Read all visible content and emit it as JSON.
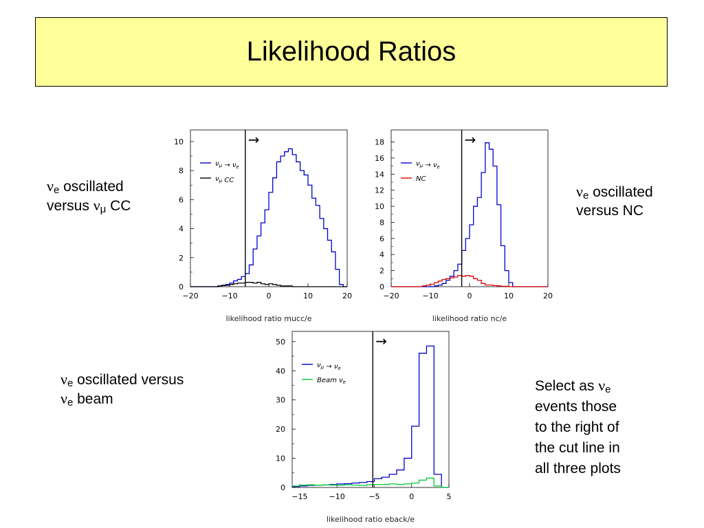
{
  "slide": {
    "title": "Likelihood Ratios"
  },
  "captions": {
    "cap1": {
      "nu1": "ν",
      "sub1": "e",
      "t1": " oscillated",
      "t2": "versus ",
      "nu2": "ν",
      "sub2": "μ",
      "t3": " CC"
    },
    "cap2": {
      "nu1": "ν",
      "sub1": "e",
      "t1": " oscillated",
      "t2": "versus NC"
    },
    "cap3": {
      "nu1": "ν",
      "sub1": "e",
      "t1": " oscillated versus",
      "nu2": "ν",
      "sub2": "e",
      "t2": " beam"
    },
    "cap4": {
      "l1a": "Select as ",
      "nu": "ν",
      "sub": "e",
      "l2": "events those",
      "l3": "to the right of",
      "l4": "the cut line in",
      "l5": "all three plots"
    }
  },
  "chart_data": [
    {
      "type": "histogram",
      "xlabel": "likelihood ratio mucc/e",
      "xlim": [
        -20,
        20
      ],
      "ylim": [
        0,
        10.8
      ],
      "xticks": [
        -20,
        -10,
        0,
        10,
        20
      ],
      "yticks": [
        0,
        2,
        4,
        6,
        8,
        10
      ],
      "cut_x": -6,
      "arrow": "→",
      "legend_position": "top-left",
      "bin_edges_start": -20,
      "bin_width": 1,
      "series": [
        {
          "name": "ν_μ → ν_e",
          "color": "#0000cc",
          "values": [
            0,
            0,
            0,
            0,
            0,
            0,
            0,
            0.05,
            0.1,
            0.15,
            0.25,
            0.4,
            0.5,
            0.7,
            0.9,
            1.5,
            2.6,
            3.5,
            4.4,
            5.3,
            6.5,
            7.5,
            8.6,
            9.0,
            9.3,
            9.5,
            9.1,
            8.6,
            8.0,
            7.7,
            7.0,
            6.1,
            5.6,
            4.7,
            4.0,
            3.2,
            2.4,
            1.2,
            0.15,
            0
          ]
        },
        {
          "name": "ν_μ CC",
          "color": "#000000",
          "values": [
            0,
            0,
            0,
            0,
            0,
            0,
            0,
            0.05,
            0.08,
            0.1,
            0.15,
            0.2,
            0.25,
            0.25,
            0.3,
            0.3,
            0.25,
            0.3,
            0.2,
            0.15,
            0.2,
            0.15,
            0.1,
            0.05,
            0.05,
            0.05,
            0,
            0,
            0,
            0,
            0,
            0,
            0,
            0,
            0,
            0,
            0,
            0,
            0,
            0
          ]
        }
      ]
    },
    {
      "type": "histogram",
      "xlabel": "likelihood ratio nc/e",
      "xlim": [
        -20,
        20
      ],
      "ylim": [
        0,
        19.5
      ],
      "xticks": [
        -20,
        -10,
        0,
        10,
        20
      ],
      "yticks": [
        0,
        2,
        4,
        6,
        8,
        10,
        12,
        14,
        16,
        18
      ],
      "cut_x": -2,
      "arrow": "→",
      "legend_position": "top-left",
      "bin_edges_start": -20,
      "bin_width": 1,
      "series": [
        {
          "name": "ν_μ → ν_e",
          "color": "#0000cc",
          "values": [
            0,
            0,
            0,
            0,
            0,
            0,
            0,
            0,
            0,
            0,
            0,
            0.1,
            0.2,
            0.4,
            0.8,
            1.3,
            2.0,
            2.8,
            4.5,
            6.0,
            7.7,
            10.0,
            11.1,
            14.2,
            17.9,
            17.1,
            15.0,
            10.2,
            5.1,
            2.0,
            0.5,
            0,
            0,
            0,
            0,
            0,
            0,
            0,
            0,
            0
          ]
        },
        {
          "name": "NC",
          "color": "#dd0000",
          "values": [
            0,
            0,
            0,
            0,
            0,
            0,
            0,
            0,
            0.1,
            0.2,
            0.3,
            0.5,
            0.7,
            0.9,
            1.0,
            1.1,
            1.2,
            1.4,
            1.3,
            1.4,
            1.3,
            1.0,
            0.8,
            0.4,
            0.2,
            0.2,
            0.15,
            0.1,
            0.05,
            0.05,
            0,
            0,
            0,
            0,
            0,
            0,
            0,
            0,
            0,
            0
          ]
        }
      ]
    },
    {
      "type": "histogram",
      "xlabel": "likelihood ratio eback/e",
      "xlim": [
        -16,
        5
      ],
      "ylim": [
        0,
        53.5
      ],
      "xticks": [
        -15,
        -10,
        -5,
        0,
        5
      ],
      "yticks": [
        0,
        10,
        20,
        30,
        40,
        50
      ],
      "cut_x": -5.2,
      "arrow": "→",
      "legend_position": "top-left",
      "bin_edges_start": -16,
      "bin_width": 1,
      "series": [
        {
          "name": "ν_μ → ν_e",
          "color": "#0000cc",
          "values": [
            0.3,
            0.5,
            0.7,
            0.8,
            0.9,
            1.0,
            1.2,
            1.3,
            1.5,
            1.7,
            2.0,
            3.0,
            3.5,
            4.5,
            6.0,
            10.0,
            21.0,
            46.0,
            48.5,
            4.5,
            0
          ]
        },
        {
          "name": "Beam ν_e",
          "color": "#00cc33",
          "values": [
            0.5,
            0.8,
            0.9,
            0.8,
            0.9,
            0.8,
            0.8,
            0.9,
            0.8,
            0.7,
            0.9,
            1.0,
            1.0,
            1.2,
            1.0,
            1.2,
            1.5,
            2.5,
            3.2,
            0.5,
            0
          ]
        }
      ]
    }
  ]
}
